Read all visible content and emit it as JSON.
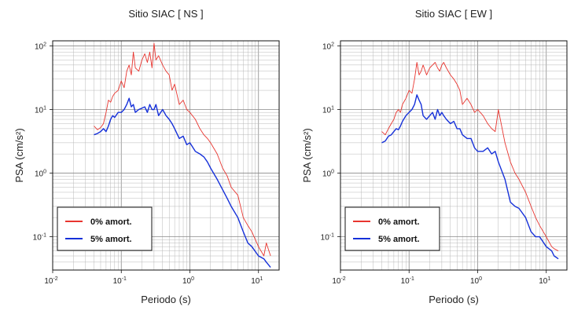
{
  "chart_data": [
    {
      "type": "line",
      "title": "Sitio SIAC [ NS ]",
      "xlabel": "Periodo (s)",
      "ylabel": "PSA (cm/s²)",
      "xscale": "log",
      "yscale": "log",
      "xlim": [
        0.01,
        20
      ],
      "ylim": [
        0.03,
        120
      ],
      "grid": true,
      "legend": "bottom-left",
      "xticks": [
        {
          "base": "10",
          "exp": "-2"
        },
        {
          "base": "10",
          "exp": "-1"
        },
        {
          "base": "10",
          "exp": "0"
        },
        {
          "base": "10",
          "exp": "1"
        }
      ],
      "yticks": [
        {
          "base": "10",
          "exp": "-1"
        },
        {
          "base": "10",
          "exp": "0"
        },
        {
          "base": "10",
          "exp": "1"
        },
        {
          "base": "10",
          "exp": "2"
        }
      ],
      "series": [
        {
          "name": "0% amort.",
          "color": "#e8352f",
          "x": [
            0.04,
            0.045,
            0.05,
            0.055,
            0.06,
            0.065,
            0.07,
            0.075,
            0.08,
            0.09,
            0.1,
            0.11,
            0.12,
            0.13,
            0.14,
            0.15,
            0.16,
            0.18,
            0.2,
            0.22,
            0.24,
            0.26,
            0.28,
            0.3,
            0.32,
            0.35,
            0.4,
            0.45,
            0.5,
            0.55,
            0.6,
            0.7,
            0.8,
            0.9,
            1.0,
            1.2,
            1.4,
            1.6,
            1.8,
            2.0,
            2.5,
            3.0,
            3.5,
            4.0,
            5.0,
            6.0,
            7.0,
            8.0,
            10.0,
            12.0,
            13.0,
            15.0
          ],
          "y": [
            5.5,
            4.8,
            5.2,
            6,
            9,
            14,
            13,
            16,
            18,
            20,
            28,
            22,
            40,
            50,
            35,
            80,
            45,
            40,
            60,
            75,
            55,
            80,
            45,
            110,
            60,
            70,
            50,
            40,
            35,
            20,
            25,
            12,
            14,
            10,
            9,
            7,
            5,
            4,
            3.5,
            3,
            2,
            1.2,
            0.9,
            0.6,
            0.45,
            0.2,
            0.15,
            0.12,
            0.07,
            0.05,
            0.08,
            0.05
          ]
        },
        {
          "name": "5% amort.",
          "color": "#1530d9",
          "x": [
            0.04,
            0.045,
            0.05,
            0.055,
            0.06,
            0.065,
            0.07,
            0.075,
            0.08,
            0.09,
            0.1,
            0.11,
            0.12,
            0.13,
            0.14,
            0.15,
            0.16,
            0.18,
            0.2,
            0.22,
            0.24,
            0.26,
            0.28,
            0.3,
            0.32,
            0.35,
            0.4,
            0.45,
            0.5,
            0.55,
            0.6,
            0.7,
            0.8,
            0.9,
            1.0,
            1.2,
            1.4,
            1.6,
            1.8,
            2.0,
            2.5,
            3.0,
            3.5,
            4.0,
            5.0,
            6.0,
            7.0,
            8.0,
            10.0,
            12.0,
            13.0,
            15.0
          ],
          "y": [
            4,
            4.2,
            4.5,
            5,
            4.5,
            5.5,
            7,
            8,
            7.5,
            9,
            9,
            10,
            12,
            15,
            11,
            12,
            9,
            10,
            10.5,
            11,
            9,
            12,
            10,
            10,
            12,
            8,
            10,
            8,
            7,
            6,
            5,
            3.5,
            3.8,
            2.8,
            3,
            2.2,
            2,
            1.8,
            1.5,
            1.2,
            0.8,
            0.55,
            0.4,
            0.3,
            0.2,
            0.12,
            0.08,
            0.07,
            0.05,
            0.045,
            0.04,
            0.033
          ]
        }
      ]
    },
    {
      "type": "line",
      "title": "Sitio SIAC [ EW ]",
      "xlabel": "Periodo (s)",
      "ylabel": "PSA (cm/s²)",
      "xscale": "log",
      "yscale": "log",
      "xlim": [
        0.01,
        20
      ],
      "ylim": [
        0.03,
        120
      ],
      "grid": true,
      "legend": "bottom-left",
      "xticks": [
        {
          "base": "10",
          "exp": "-2"
        },
        {
          "base": "10",
          "exp": "-1"
        },
        {
          "base": "10",
          "exp": "0"
        },
        {
          "base": "10",
          "exp": "1"
        }
      ],
      "yticks": [
        {
          "base": "10",
          "exp": "-1"
        },
        {
          "base": "10",
          "exp": "0"
        },
        {
          "base": "10",
          "exp": "1"
        },
        {
          "base": "10",
          "exp": "2"
        }
      ],
      "series": [
        {
          "name": "0% amort.",
          "color": "#e8352f",
          "x": [
            0.04,
            0.045,
            0.05,
            0.055,
            0.06,
            0.065,
            0.07,
            0.075,
            0.08,
            0.09,
            0.1,
            0.11,
            0.12,
            0.13,
            0.14,
            0.15,
            0.16,
            0.18,
            0.2,
            0.22,
            0.24,
            0.26,
            0.28,
            0.3,
            0.32,
            0.35,
            0.4,
            0.45,
            0.5,
            0.55,
            0.6,
            0.7,
            0.8,
            0.9,
            1.0,
            1.2,
            1.4,
            1.6,
            1.8,
            2.0,
            2.5,
            3.0,
            3.5,
            4.0,
            5.0,
            6.0,
            7.0,
            8.0,
            10.0,
            12.0,
            13.0,
            15.0
          ],
          "y": [
            4.5,
            4,
            5,
            6,
            7,
            9,
            10,
            9,
            12,
            15,
            20,
            18,
            30,
            55,
            35,
            40,
            50,
            35,
            45,
            50,
            55,
            45,
            40,
            50,
            55,
            45,
            35,
            30,
            25,
            20,
            12,
            15,
            12,
            9,
            10,
            8,
            6,
            5,
            4.5,
            10,
            3,
            1.5,
            1,
            0.8,
            0.5,
            0.3,
            0.2,
            0.15,
            0.1,
            0.07,
            0.065,
            0.06
          ]
        },
        {
          "name": "5% amort.",
          "color": "#1530d9",
          "x": [
            0.04,
            0.045,
            0.05,
            0.055,
            0.06,
            0.065,
            0.07,
            0.075,
            0.08,
            0.09,
            0.1,
            0.11,
            0.12,
            0.13,
            0.14,
            0.15,
            0.16,
            0.18,
            0.2,
            0.22,
            0.24,
            0.26,
            0.28,
            0.3,
            0.32,
            0.35,
            0.4,
            0.45,
            0.5,
            0.55,
            0.6,
            0.7,
            0.8,
            0.9,
            1.0,
            1.2,
            1.4,
            1.6,
            1.8,
            2.0,
            2.5,
            3.0,
            3.5,
            4.0,
            5.0,
            6.0,
            7.0,
            8.0,
            10.0,
            12.0,
            13.0,
            15.0
          ],
          "y": [
            3,
            3.2,
            3.8,
            4,
            4.5,
            5,
            4.8,
            5.5,
            6.5,
            8,
            9,
            10,
            12,
            17,
            14,
            12,
            8,
            7,
            8,
            9,
            7,
            10,
            8,
            9,
            8,
            7,
            6,
            6.5,
            5,
            5,
            4,
            3.5,
            3.5,
            2.5,
            2.2,
            2.2,
            2.5,
            2,
            2.2,
            1.5,
            0.8,
            0.35,
            0.3,
            0.28,
            0.2,
            0.12,
            0.1,
            0.1,
            0.07,
            0.06,
            0.05,
            0.045
          ]
        }
      ]
    }
  ]
}
